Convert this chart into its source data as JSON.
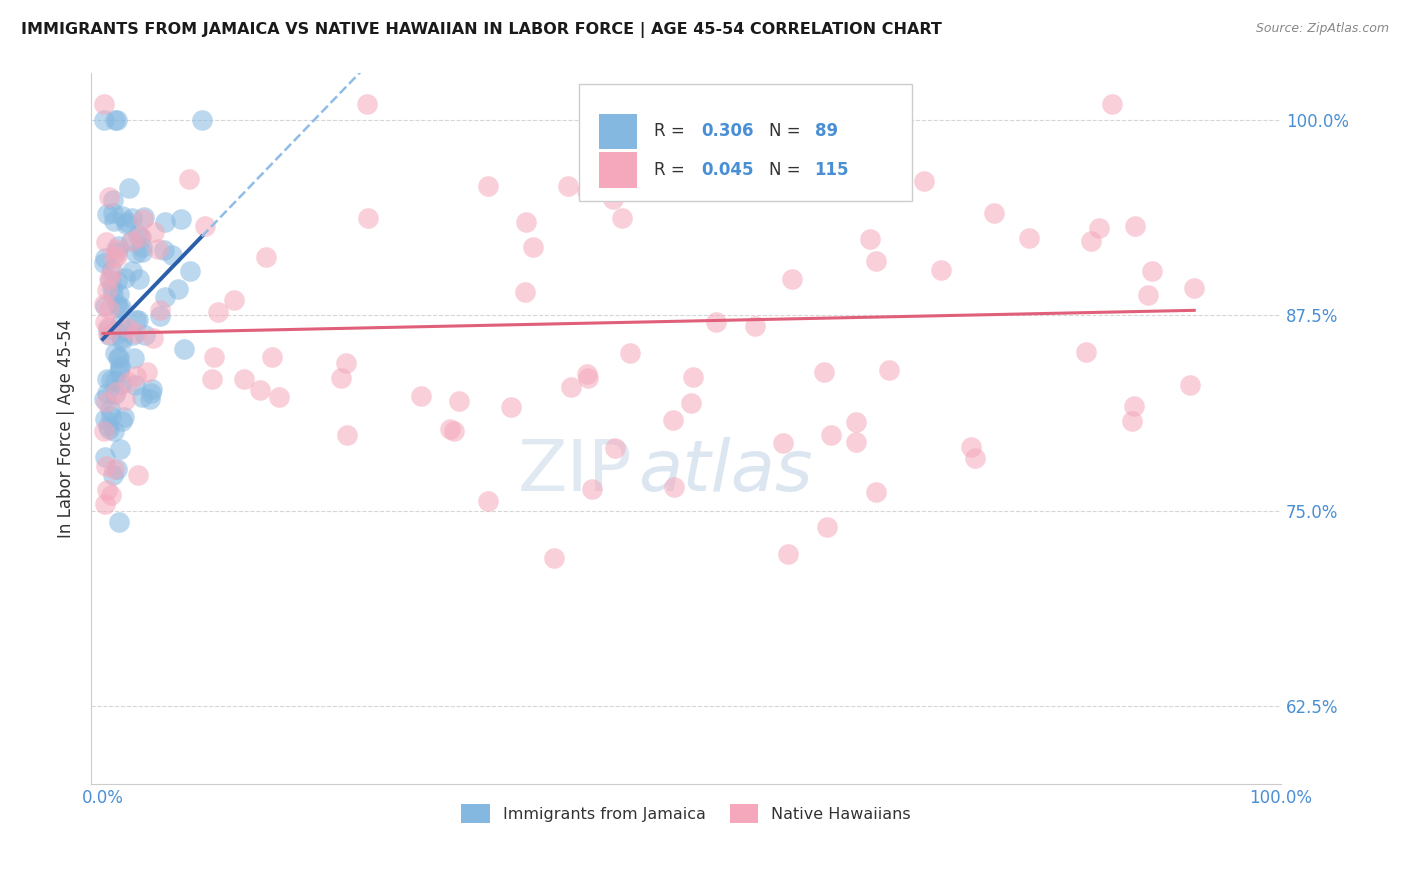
{
  "title": "IMMIGRANTS FROM JAMAICA VS NATIVE HAWAIIAN IN LABOR FORCE | AGE 45-54 CORRELATION CHART",
  "source": "Source: ZipAtlas.com",
  "ylabel": "In Labor Force | Age 45-54",
  "xlim": [
    -0.01,
    1.0
  ],
  "ylim": [
    0.575,
    1.03
  ],
  "xtick_labels": [
    "0.0%",
    "100.0%"
  ],
  "ytick_labels": [
    "62.5%",
    "75.0%",
    "87.5%",
    "100.0%"
  ],
  "ytick_positions": [
    0.625,
    0.75,
    0.875,
    1.0
  ],
  "legend_items": [
    "Immigrants from Jamaica",
    "Native Hawaiians"
  ],
  "r_jamaica": 0.306,
  "n_jamaica": 89,
  "r_hawaiian": 0.045,
  "n_hawaiian": 115,
  "color_jamaica": "#85b8e0",
  "color_hawaiian": "#f5a8bc",
  "color_jamaica_line": "#2b5faa",
  "color_hawaiian_line": "#e0607a",
  "color_jamaica_dash": "#90bce8",
  "background_color": "#ffffff",
  "grid_color": "#cccccc"
}
